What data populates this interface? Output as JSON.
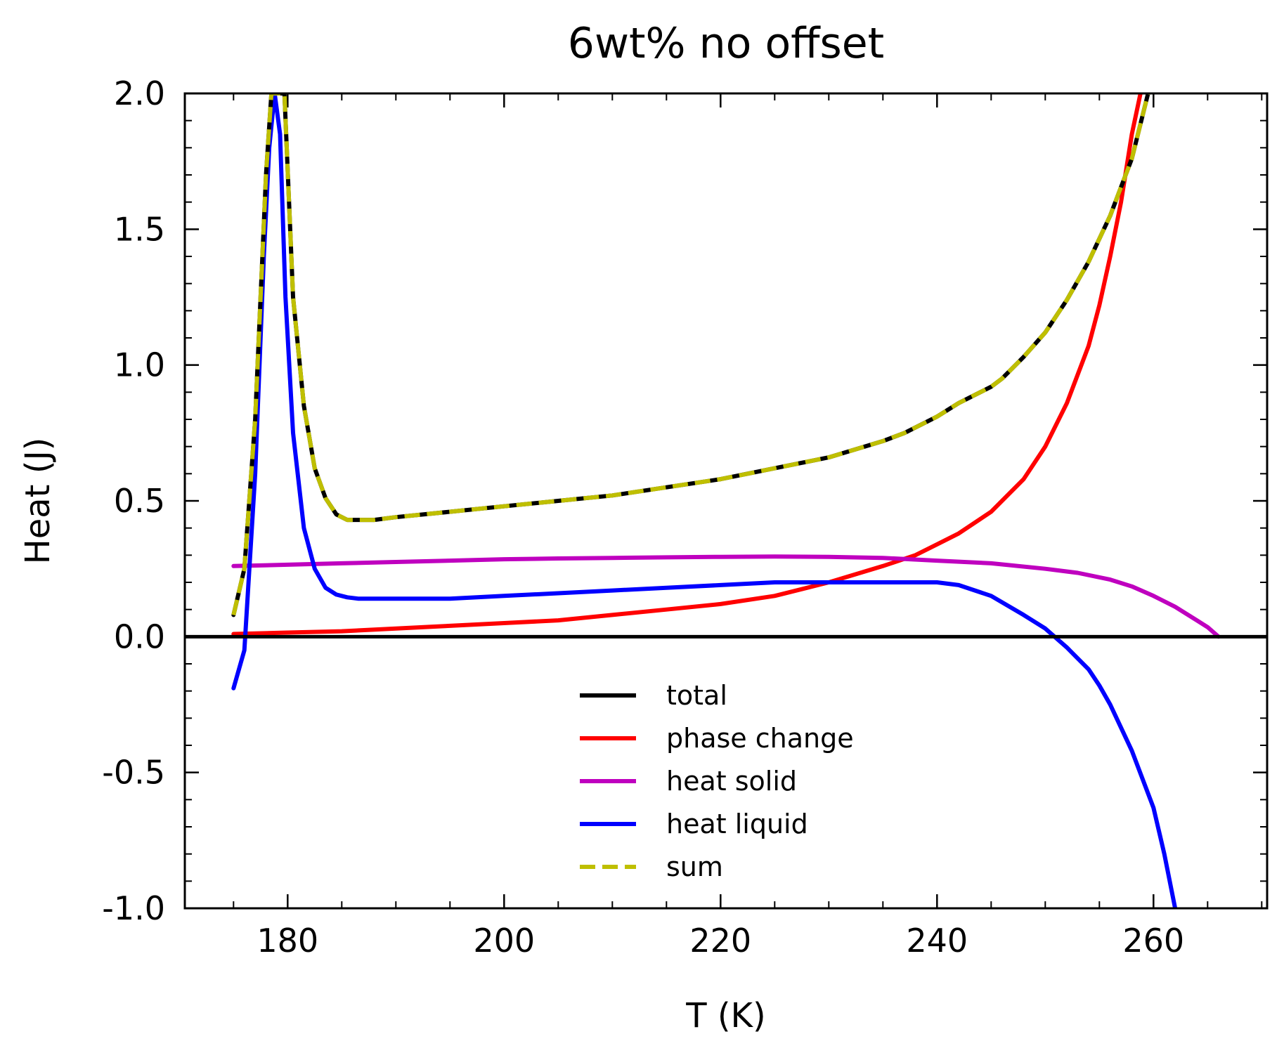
{
  "chart_data": {
    "type": "line",
    "title": "6wt% no offset",
    "xlabel": "T (K)",
    "ylabel": "Heat (J)",
    "xlim": [
      170.5,
      270.5
    ],
    "ylim": [
      -1.0,
      2.0
    ],
    "xticks": [
      180,
      200,
      220,
      240,
      260
    ],
    "xtick_labels": [
      "180",
      "200",
      "220",
      "240",
      "260"
    ],
    "yticks": [
      -1.0,
      -0.5,
      0.0,
      0.5,
      1.0,
      1.5,
      2.0
    ],
    "ytick_labels": [
      "-1.0",
      "-0.5",
      "0.0",
      "0.5",
      "1.0",
      "1.5",
      "2.0"
    ],
    "grid": false,
    "legend_position": "lower-center",
    "series": [
      {
        "name": "total",
        "color": "#000000",
        "dash": false,
        "x": [
          175,
          176,
          177,
          178,
          178.5,
          179.7,
          180.5,
          181.5,
          182.5,
          183.5,
          184.5,
          185.5,
          186.5,
          188,
          190,
          195,
          200,
          205,
          210,
          215,
          220,
          225,
          230,
          235,
          237,
          240,
          242,
          245,
          246,
          248,
          250,
          252,
          254,
          256,
          258,
          259.5
        ],
        "y": [
          0.08,
          0.25,
          0.8,
          1.7,
          2.0,
          2.0,
          1.25,
          0.85,
          0.62,
          0.51,
          0.45,
          0.43,
          0.43,
          0.43,
          0.44,
          0.46,
          0.48,
          0.5,
          0.52,
          0.55,
          0.58,
          0.62,
          0.66,
          0.72,
          0.75,
          0.81,
          0.86,
          0.92,
          0.95,
          1.03,
          1.12,
          1.24,
          1.38,
          1.55,
          1.76,
          2.0
        ]
      },
      {
        "name": "phase change",
        "color": "#ff0000",
        "dash": false,
        "x": [
          175,
          180,
          185,
          190,
          195,
          200,
          205,
          210,
          215,
          220,
          225,
          230,
          235,
          238,
          240,
          242,
          245,
          248,
          250,
          252,
          254,
          255,
          256,
          257,
          258,
          258.8
        ],
        "y": [
          0.01,
          0.015,
          0.02,
          0.03,
          0.04,
          0.05,
          0.06,
          0.08,
          0.1,
          0.12,
          0.15,
          0.2,
          0.26,
          0.3,
          0.34,
          0.38,
          0.46,
          0.58,
          0.7,
          0.86,
          1.07,
          1.22,
          1.4,
          1.6,
          1.85,
          2.0
        ]
      },
      {
        "name": "heat solid",
        "color": "#bf00bf",
        "dash": false,
        "x": [
          175,
          180,
          185,
          190,
          195,
          200,
          205,
          210,
          215,
          220,
          225,
          230,
          235,
          240,
          245,
          250,
          253,
          256,
          258,
          260,
          262,
          264,
          265,
          266
        ],
        "y": [
          0.26,
          0.265,
          0.27,
          0.275,
          0.28,
          0.285,
          0.288,
          0.29,
          0.292,
          0.294,
          0.295,
          0.294,
          0.29,
          0.28,
          0.27,
          0.25,
          0.235,
          0.21,
          0.185,
          0.15,
          0.11,
          0.06,
          0.035,
          0.0
        ]
      },
      {
        "name": "heat liquid",
        "color": "#0000ff",
        "dash": false,
        "x": [
          175,
          176,
          177,
          177.8,
          178.3,
          178.8,
          179.3,
          179.8,
          180.5,
          181.5,
          182.5,
          183.5,
          184.5,
          185.5,
          186.5,
          190,
          195,
          200,
          205,
          210,
          215,
          220,
          225,
          230,
          235,
          240,
          242,
          245,
          248,
          250,
          252,
          254,
          255,
          256,
          258,
          260,
          261,
          262
        ],
        "y": [
          -0.19,
          -0.05,
          0.6,
          1.4,
          1.8,
          2.0,
          1.85,
          1.25,
          0.75,
          0.4,
          0.25,
          0.18,
          0.155,
          0.145,
          0.14,
          0.14,
          0.14,
          0.15,
          0.16,
          0.17,
          0.18,
          0.19,
          0.2,
          0.2,
          0.2,
          0.2,
          0.19,
          0.15,
          0.08,
          0.03,
          -0.04,
          -0.12,
          -0.18,
          -0.25,
          -0.42,
          -0.63,
          -0.8,
          -1.0
        ]
      },
      {
        "name": "sum",
        "color": "#bfbf00",
        "dash": true,
        "x": [
          175,
          176,
          177,
          178,
          178.5,
          179.7,
          180.5,
          181.5,
          182.5,
          183.5,
          184.5,
          185.5,
          186.5,
          188,
          190,
          195,
          200,
          205,
          210,
          215,
          220,
          225,
          230,
          235,
          237,
          240,
          242,
          245,
          246,
          248,
          250,
          252,
          254,
          256,
          258,
          259.5
        ],
        "y": [
          0.08,
          0.25,
          0.8,
          1.7,
          2.0,
          2.0,
          1.25,
          0.85,
          0.62,
          0.51,
          0.45,
          0.43,
          0.43,
          0.43,
          0.44,
          0.46,
          0.48,
          0.5,
          0.52,
          0.55,
          0.58,
          0.62,
          0.66,
          0.72,
          0.75,
          0.81,
          0.86,
          0.92,
          0.95,
          1.03,
          1.12,
          1.24,
          1.38,
          1.55,
          1.76,
          2.0
        ]
      }
    ],
    "reference_line": {
      "y": 0.0,
      "color": "#000000"
    }
  }
}
